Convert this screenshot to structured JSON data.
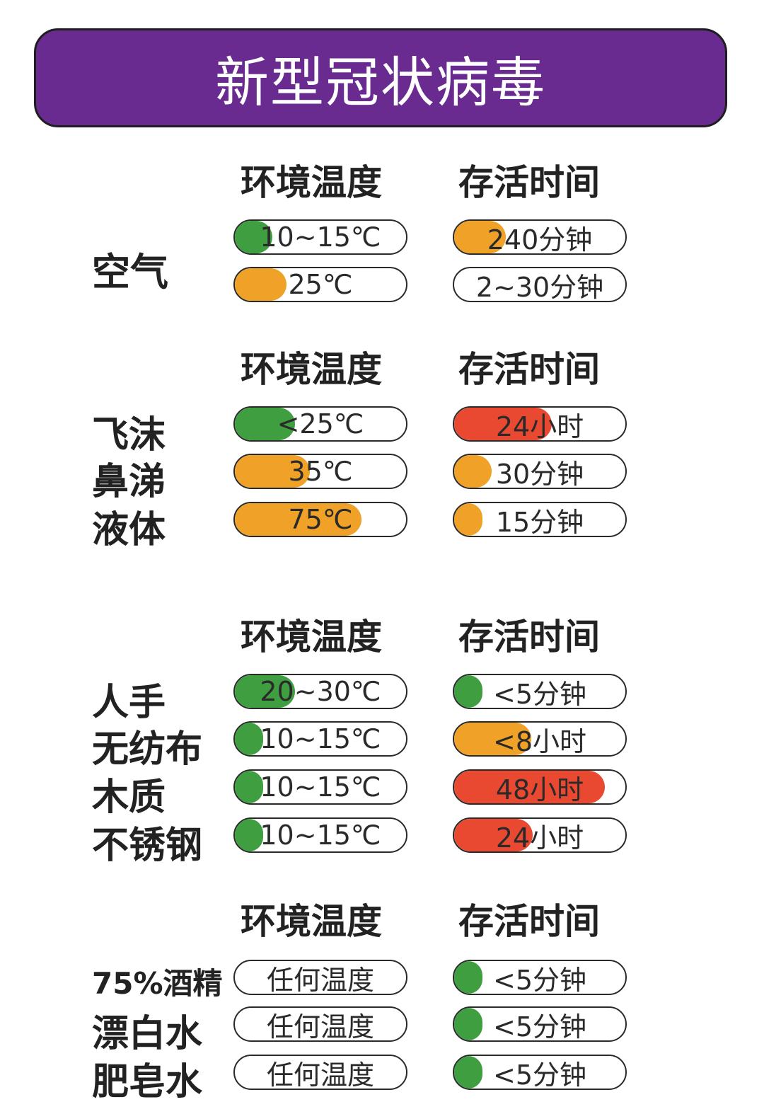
{
  "title": "新型冠状病毒",
  "headers": {
    "temp": "环境温度",
    "time": "存活时间"
  },
  "colors": {
    "banner": "#6a2b91",
    "green": "#3f9e3f",
    "orange": "#f0a228",
    "red": "#e84930",
    "white": "#ffffff"
  },
  "sections": [
    {
      "label": "空气",
      "rows": [
        {
          "temp": {
            "text": "10~15℃",
            "color": "green",
            "level": 0.22
          },
          "time": {
            "text": "240分钟",
            "color": "orange",
            "level": 0.3
          }
        },
        {
          "temp": {
            "text": "25℃",
            "color": "orange",
            "level": 0.3
          },
          "time": {
            "text": "2~30分钟",
            "color": "white",
            "level": 0
          }
        }
      ]
    },
    {
      "labels": [
        "飞沫",
        "鼻涕",
        "液体"
      ],
      "rows": [
        {
          "temp": {
            "text": "<25℃",
            "color": "green",
            "level": 0.35
          },
          "time": {
            "text": "24小时",
            "color": "red",
            "level": 0.57
          }
        },
        {
          "temp": {
            "text": "35℃",
            "color": "orange",
            "level": 0.44
          },
          "time": {
            "text": "30分钟",
            "color": "orange",
            "level": 0.22
          }
        },
        {
          "temp": {
            "text": "75℃",
            "color": "orange",
            "level": 0.74
          },
          "time": {
            "text": "15分钟",
            "color": "orange",
            "level": 0.16
          }
        }
      ]
    },
    {
      "labels": [
        "人手",
        "无纺布",
        "木质",
        "不锈钢"
      ],
      "rows": [
        {
          "temp": {
            "text": "20~30℃",
            "color": "green",
            "level": 0.35
          },
          "time": {
            "text": "<5分钟",
            "color": "green",
            "level": 0.12
          }
        },
        {
          "temp": {
            "text": "10~15℃",
            "color": "green",
            "level": 0.16
          },
          "time": {
            "text": "<8小时",
            "color": "orange",
            "level": 0.45
          }
        },
        {
          "temp": {
            "text": "10~15℃",
            "color": "green",
            "level": 0.16
          },
          "time": {
            "text": "48小时",
            "color": "red",
            "level": 0.88
          }
        },
        {
          "temp": {
            "text": "10~15℃",
            "color": "green",
            "level": 0.16
          },
          "time": {
            "text": "24小时",
            "color": "red",
            "level": 0.46
          }
        }
      ]
    },
    {
      "labels": [
        "75%酒精",
        "漂白水",
        "肥皂水"
      ],
      "rows": [
        {
          "temp": {
            "text": "任何温度",
            "color": "white",
            "level": 0
          },
          "time": {
            "text": "<5分钟",
            "color": "green",
            "level": 0.12
          }
        },
        {
          "temp": {
            "text": "任何温度",
            "color": "white",
            "level": 0
          },
          "time": {
            "text": "<5分钟",
            "color": "green",
            "level": 0.12
          }
        },
        {
          "temp": {
            "text": "任何温度",
            "color": "white",
            "level": 0
          },
          "time": {
            "text": "<5分钟",
            "color": "green",
            "level": 0.12
          }
        }
      ]
    }
  ]
}
